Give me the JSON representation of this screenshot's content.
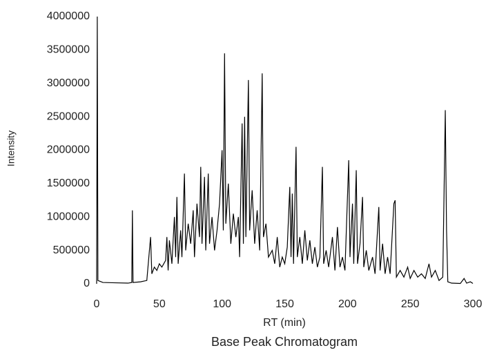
{
  "chart_data": {
    "type": "line",
    "title": "Base Peak Chromatogram",
    "x_label": "RT (min)",
    "y_label": "Intensity",
    "color": "#000000",
    "x": [
      0,
      0.5,
      1,
      5,
      15,
      25,
      28,
      28.5,
      29,
      35,
      40,
      43,
      44,
      46,
      48,
      50,
      52,
      55,
      56,
      57,
      58,
      60,
      62,
      63,
      64,
      65,
      67,
      68,
      70,
      71,
      73,
      75,
      77,
      78,
      80,
      82,
      83,
      84,
      86,
      87,
      89,
      90,
      92,
      94,
      96,
      98,
      100,
      101,
      102,
      103,
      105,
      107,
      109,
      111,
      113,
      114,
      116,
      117,
      118,
      119,
      121,
      122,
      124,
      126,
      128,
      130,
      132,
      133,
      135,
      137,
      140,
      142,
      144,
      146,
      148,
      150,
      152,
      154,
      155,
      156,
      157,
      159,
      160,
      162,
      164,
      166,
      168,
      170,
      172,
      174,
      176,
      178,
      180,
      181,
      183,
      185,
      188,
      190,
      192,
      194,
      196,
      198,
      201,
      202,
      204,
      205,
      207,
      208,
      210,
      212,
      213,
      215,
      217,
      220,
      222,
      225,
      226,
      228,
      230,
      232,
      234,
      237,
      238,
      239,
      242,
      245,
      248,
      250,
      253,
      256,
      259,
      262,
      265,
      267,
      270,
      273,
      276,
      278,
      279,
      280,
      283,
      290,
      293,
      295,
      298,
      300
    ],
    "values": [
      0,
      4000000,
      50000,
      20000,
      15000,
      10000,
      20000,
      1100000,
      20000,
      30000,
      50000,
      700000,
      150000,
      250000,
      200000,
      300000,
      250000,
      350000,
      700000,
      200000,
      650000,
      300000,
      1000000,
      400000,
      1300000,
      300000,
      800000,
      400000,
      1650000,
      500000,
      900000,
      600000,
      1100000,
      400000,
      1200000,
      700000,
      1750000,
      600000,
      1600000,
      500000,
      1650000,
      600000,
      1000000,
      500000,
      800000,
      1200000,
      2000000,
      800000,
      3450000,
      900000,
      1500000,
      600000,
      1050000,
      700000,
      1000000,
      400000,
      2400000,
      600000,
      2500000,
      700000,
      3050000,
      800000,
      1400000,
      600000,
      1100000,
      500000,
      3150000,
      700000,
      900000,
      400000,
      500000,
      300000,
      700000,
      250000,
      400000,
      300000,
      550000,
      1450000,
      400000,
      1350000,
      300000,
      2050000,
      400000,
      700000,
      300000,
      800000,
      350000,
      650000,
      300000,
      550000,
      250000,
      400000,
      1750000,
      300000,
      500000,
      250000,
      700000,
      200000,
      850000,
      250000,
      400000,
      200000,
      1850000,
      400000,
      1200000,
      300000,
      1700000,
      300000,
      600000,
      1300000,
      250000,
      500000,
      200000,
      400000,
      150000,
      1150000,
      200000,
      600000,
      150000,
      400000,
      150000,
      1200000,
      1250000,
      100000,
      200000,
      100000,
      250000,
      80000,
      200000,
      100000,
      150000,
      80000,
      300000,
      100000,
      200000,
      50000,
      100000,
      2600000,
      800000,
      30000,
      10000,
      5000,
      80000,
      10000,
      30000,
      5000
    ],
    "xlim": [
      0,
      300
    ],
    "xticks": [
      0,
      50,
      100,
      150,
      200,
      250,
      300
    ],
    "ylim": [
      0,
      4000000
    ],
    "yticks": [
      0,
      500000,
      1000000,
      1500000,
      2000000,
      2500000,
      3000000,
      3500000,
      4000000
    ],
    "grid": false
  }
}
